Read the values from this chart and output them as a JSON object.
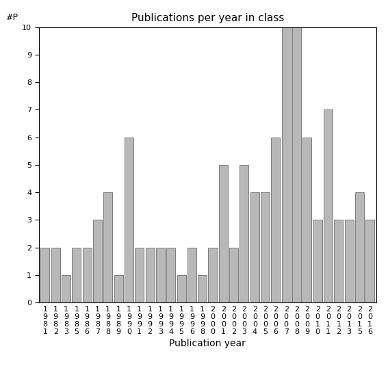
{
  "title": "Publications per year in class",
  "xlabel": "Publication year",
  "ylabel": "#P",
  "ylim": [
    0,
    10
  ],
  "bar_color": "#b8b8b8",
  "bar_edgecolor": "#555555",
  "years": [
    "1981",
    "1982",
    "1983",
    "1985",
    "1986",
    "1987",
    "1988",
    "1989",
    "1990",
    "1991",
    "1992",
    "1993",
    "1994",
    "1995",
    "1996",
    "1998",
    "2000",
    "2001",
    "2002",
    "2003",
    "2004",
    "2005",
    "2006",
    "2007",
    "2008",
    "2009",
    "2010",
    "2011",
    "2012",
    "2013",
    "2015",
    "2016"
  ],
  "values": [
    2,
    2,
    1,
    2,
    2,
    3,
    4,
    1,
    6,
    2,
    2,
    2,
    2,
    1,
    2,
    1,
    2,
    5,
    2,
    5,
    4,
    4,
    6,
    10,
    10,
    6,
    3,
    7,
    3,
    3,
    4,
    3
  ],
  "figsize": [
    5.67,
    5.67
  ],
  "dpi": 100,
  "title_fontsize": 11,
  "axis_label_fontsize": 10,
  "tick_fontsize": 8,
  "ylabel_fontsize": 9
}
